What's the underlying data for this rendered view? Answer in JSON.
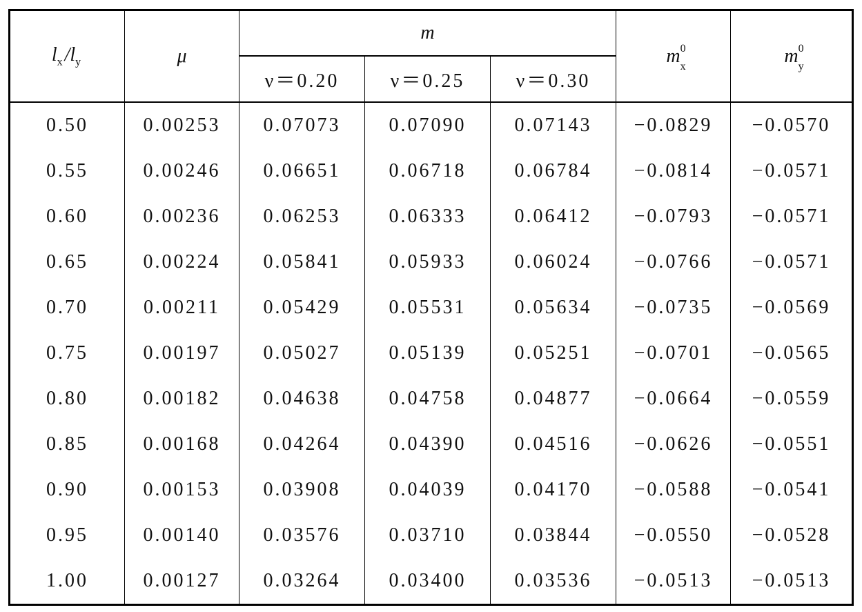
{
  "header": {
    "ratio": {
      "l1": "l",
      "s1": "x",
      "sep": "/",
      "l2": "l",
      "s2": "y"
    },
    "mu": "μ",
    "m": "m",
    "nu": [
      "ν＝0.20",
      "ν＝0.25",
      "ν＝0.30"
    ],
    "mx": {
      "base": "m",
      "sup": "0",
      "sub": "x"
    },
    "my": {
      "base": "m",
      "sup": "0",
      "sub": "y"
    }
  },
  "rows": [
    [
      "0.50",
      "0.00253",
      "0.07073",
      "0.07090",
      "0.07143",
      "−0.0829",
      "−0.0570"
    ],
    [
      "0.55",
      "0.00246",
      "0.06651",
      "0.06718",
      "0.06784",
      "−0.0814",
      "−0.0571"
    ],
    [
      "0.60",
      "0.00236",
      "0.06253",
      "0.06333",
      "0.06412",
      "−0.0793",
      "−0.0571"
    ],
    [
      "0.65",
      "0.00224",
      "0.05841",
      "0.05933",
      "0.06024",
      "−0.0766",
      "−0.0571"
    ],
    [
      "0.70",
      "0.00211",
      "0.05429",
      "0.05531",
      "0.05634",
      "−0.0735",
      "−0.0569"
    ],
    [
      "0.75",
      "0.00197",
      "0.05027",
      "0.05139",
      "0.05251",
      "−0.0701",
      "−0.0565"
    ],
    [
      "0.80",
      "0.00182",
      "0.04638",
      "0.04758",
      "0.04877",
      "−0.0664",
      "−0.0559"
    ],
    [
      "0.85",
      "0.00168",
      "0.04264",
      "0.04390",
      "0.04516",
      "−0.0626",
      "−0.0551"
    ],
    [
      "0.90",
      "0.00153",
      "0.03908",
      "0.04039",
      "0.04170",
      "−0.0588",
      "−0.0541"
    ],
    [
      "0.95",
      "0.00140",
      "0.03576",
      "0.03710",
      "0.03844",
      "−0.0550",
      "−0.0528"
    ],
    [
      "1.00",
      "0.00127",
      "0.03264",
      "0.03400",
      "0.03536",
      "−0.0513",
      "−0.0513"
    ]
  ]
}
